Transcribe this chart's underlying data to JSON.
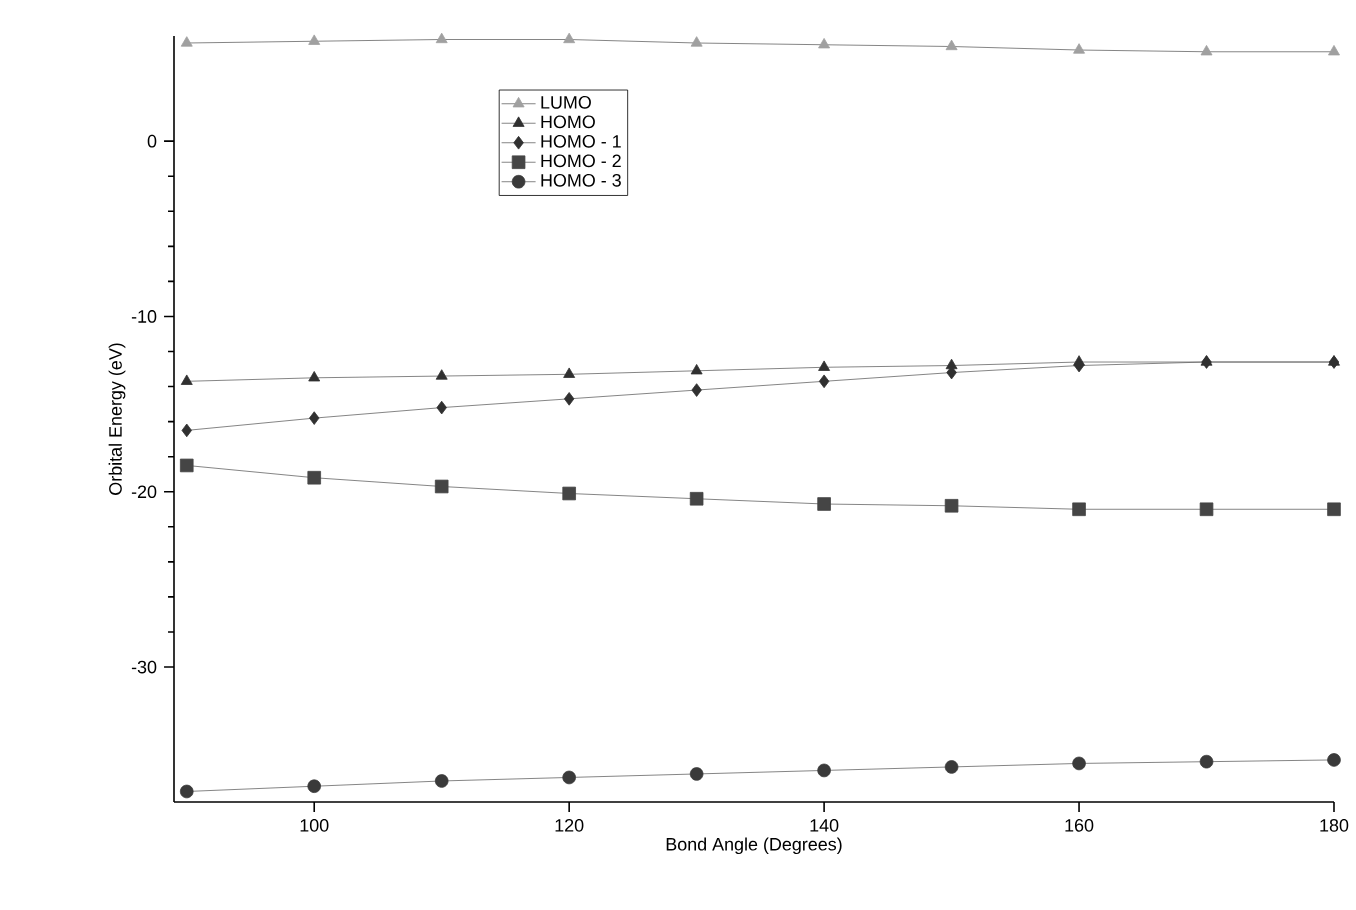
{
  "chart_data": {
    "type": "line",
    "xlabel": "Bond Angle (Degrees)",
    "ylabel": "Orbital Energy (eV)",
    "x": [
      90,
      100,
      110,
      120,
      130,
      140,
      150,
      160,
      170,
      180
    ],
    "xlim": [
      89,
      180
    ],
    "xticks": [
      100,
      120,
      140,
      160,
      180
    ],
    "ylim": [
      -37.7,
      6.0
    ],
    "yticks": [
      -30,
      -20,
      -10,
      0
    ],
    "legend": "top",
    "grid": false,
    "series": [
      {
        "name": "LUMO",
        "color": "#a0a0a0",
        "marker": "triangle-down",
        "values": [
          5.6,
          5.7,
          5.8,
          5.8,
          5.6,
          5.5,
          5.4,
          5.2,
          5.1,
          5.1
        ]
      },
      {
        "name": "HOMO",
        "color": "#303030",
        "marker": "triangle",
        "values": [
          -13.7,
          -13.5,
          -13.4,
          -13.3,
          -13.1,
          -12.9,
          -12.8,
          -12.6,
          -12.6,
          -12.6
        ]
      },
      {
        "name": "HOMO - 1",
        "color": "#303030",
        "marker": "diamond",
        "values": [
          -16.5,
          -15.8,
          -15.2,
          -14.7,
          -14.2,
          -13.7,
          -13.2,
          -12.8,
          -12.6,
          -12.6
        ]
      },
      {
        "name": "HOMO - 2",
        "color": "#454545",
        "marker": "square",
        "values": [
          -18.5,
          -19.2,
          -19.7,
          -20.1,
          -20.4,
          -20.7,
          -20.8,
          -21.0,
          -21.0,
          -21.0
        ]
      },
      {
        "name": "HOMO - 3",
        "color": "#3a3a3a",
        "marker": "circle",
        "values": [
          -37.1,
          -36.8,
          -36.5,
          -36.3,
          -36.1,
          -35.9,
          -35.7,
          -35.5,
          -35.4,
          -35.3
        ]
      }
    ]
  }
}
